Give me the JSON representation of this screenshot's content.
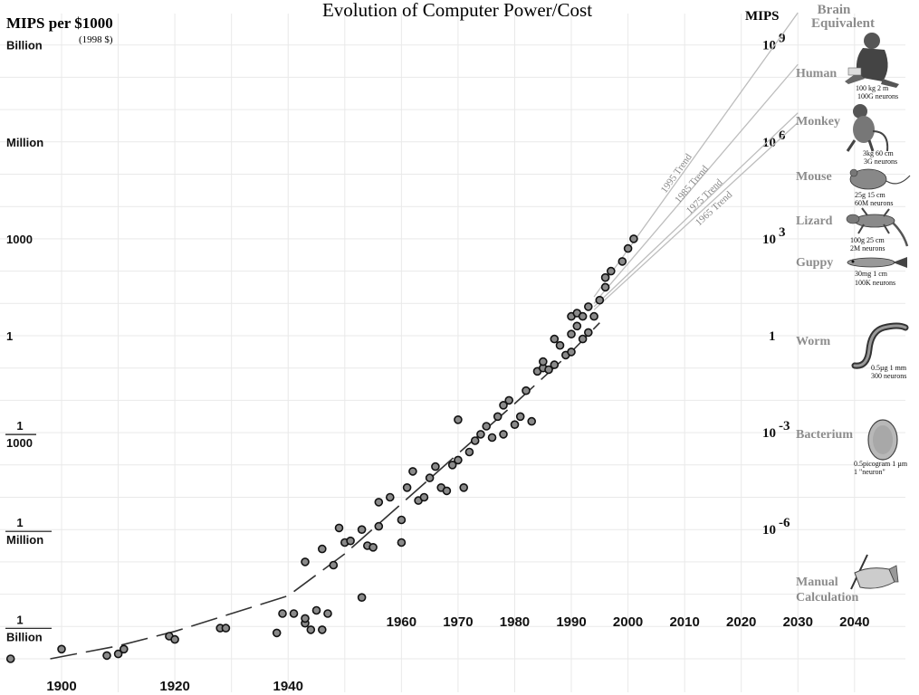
{
  "chart_data": {
    "type": "scatter",
    "title": "Evolution of Computer Power/Cost",
    "ylabel": "MIPS per $1000",
    "ylabel_note": "(1998 $)",
    "right_axis_label": "MIPS",
    "right_axis_header": [
      "Brain",
      "Equivalent"
    ],
    "xlim": [
      1895,
      2050
    ],
    "ylim_log10": [
      -10.5,
      10.5
    ],
    "left_ticks": [
      {
        "log10": 9,
        "label": "Billion"
      },
      {
        "log10": 6,
        "label": "Million"
      },
      {
        "log10": 3,
        "label": "1000"
      },
      {
        "log10": 0,
        "label": "1"
      },
      {
        "log10": -3,
        "num": "1",
        "den": "1000"
      },
      {
        "log10": -6,
        "num": "1",
        "den": "Million"
      },
      {
        "log10": -9,
        "num": "1",
        "den": "Billion"
      }
    ],
    "right_ticks": [
      {
        "log10": 9,
        "base": "10",
        "exp": "9"
      },
      {
        "log10": 6,
        "base": "10",
        "exp": "6"
      },
      {
        "log10": 3,
        "base": "10",
        "exp": "3"
      },
      {
        "log10": 0,
        "base": "1",
        "exp": ""
      },
      {
        "log10": -3,
        "base": "10",
        "exp": "-3"
      },
      {
        "log10": -6,
        "base": "10",
        "exp": "-6"
      }
    ],
    "x_ticks_lower": [
      1900,
      1920,
      1940
    ],
    "x_ticks_upper": [
      1960,
      1970,
      1980,
      1990,
      2000,
      2010,
      2020,
      2030,
      2040
    ],
    "points": [
      [
        1891,
        -10.0
      ],
      [
        1900,
        -9.7
      ],
      [
        1908,
        -9.9
      ],
      [
        1910,
        -9.85
      ],
      [
        1911,
        -9.7
      ],
      [
        1919,
        -9.3
      ],
      [
        1920,
        -9.4
      ],
      [
        1928,
        -9.05
      ],
      [
        1929,
        -9.05
      ],
      [
        1938,
        -9.2
      ],
      [
        1939,
        -8.6
      ],
      [
        1941,
        -8.6
      ],
      [
        1943,
        -8.9
      ],
      [
        1943,
        -8.75
      ],
      [
        1944,
        -9.1
      ],
      [
        1945,
        -8.5
      ],
      [
        1946,
        -9.1
      ],
      [
        1947,
        -8.6
      ],
      [
        1943,
        -7.0
      ],
      [
        1946,
        -6.6
      ],
      [
        1948,
        -7.1
      ],
      [
        1949,
        -5.95
      ],
      [
        1950,
        -6.4
      ],
      [
        1951,
        -6.35
      ],
      [
        1953,
        -6.0
      ],
      [
        1953,
        -8.1
      ],
      [
        1954,
        -6.5
      ],
      [
        1955,
        -6.55
      ],
      [
        1956,
        -5.9
      ],
      [
        1956,
        -5.15
      ],
      [
        1958,
        -5.0
      ],
      [
        1960,
        -5.7
      ],
      [
        1960,
        -6.4
      ],
      [
        1961,
        -4.7
      ],
      [
        1962,
        -4.2
      ],
      [
        1963,
        -5.1
      ],
      [
        1964,
        -5.0
      ],
      [
        1965,
        -4.4
      ],
      [
        1966,
        -4.05
      ],
      [
        1967,
        -4.7
      ],
      [
        1968,
        -4.8
      ],
      [
        1969,
        -4.0
      ],
      [
        1970,
        -3.85
      ],
      [
        1970,
        -2.6
      ],
      [
        1971,
        -4.7
      ],
      [
        1972,
        -3.6
      ],
      [
        1973,
        -3.25
      ],
      [
        1974,
        -3.05
      ],
      [
        1975,
        -2.8
      ],
      [
        1976,
        -3.15
      ],
      [
        1977,
        -2.5
      ],
      [
        1978,
        -3.05
      ],
      [
        1978,
        -2.15
      ],
      [
        1979,
        -2.0
      ],
      [
        1980,
        -2.75
      ],
      [
        1981,
        -2.5
      ],
      [
        1982,
        -1.7
      ],
      [
        1983,
        -2.65
      ],
      [
        1984,
        -1.1
      ],
      [
        1985,
        -1.0
      ],
      [
        1985,
        -0.8
      ],
      [
        1986,
        -1.05
      ],
      [
        1987,
        -0.9
      ],
      [
        1987,
        -0.1
      ],
      [
        1988,
        -0.3
      ],
      [
        1989,
        -0.6
      ],
      [
        1990,
        -0.5
      ],
      [
        1990,
        0.05
      ],
      [
        1990,
        0.6
      ],
      [
        1991,
        0.7
      ],
      [
        1991,
        0.3
      ],
      [
        1992,
        -0.1
      ],
      [
        1992,
        0.6
      ],
      [
        1993,
        0.1
      ],
      [
        1993,
        0.9
      ],
      [
        1994,
        0.6
      ],
      [
        1995,
        1.1
      ],
      [
        1996,
        1.5
      ],
      [
        1996,
        1.8
      ],
      [
        1997,
        2.0
      ],
      [
        1999,
        2.3
      ],
      [
        2000,
        2.7
      ],
      [
        2001,
        3.0
      ]
    ],
    "fit_curve": [
      [
        1898,
        -10.0
      ],
      [
        1910,
        -9.6
      ],
      [
        1920,
        -9.15
      ],
      [
        1930,
        -8.6
      ],
      [
        1940,
        -8.05
      ],
      [
        1950,
        -6.75
      ],
      [
        1960,
        -5.2
      ],
      [
        1970,
        -3.65
      ],
      [
        1980,
        -2.1
      ],
      [
        1990,
        -0.5
      ],
      [
        1995,
        0.4
      ]
    ],
    "trend_lines": [
      {
        "name": "1995 Trend",
        "from": [
          1994,
          1.2
        ],
        "to": [
          2030,
          10.0
        ]
      },
      {
        "name": "1985 Trend",
        "from": [
          1994,
          1.0
        ],
        "to": [
          2030,
          8.4
        ]
      },
      {
        "name": "1975 Trend",
        "from": [
          1994,
          0.9
        ],
        "to": [
          2030,
          6.9
        ]
      },
      {
        "name": "1965 Trend",
        "from": [
          1994,
          0.8
        ],
        "to": [
          2030,
          6.6
        ]
      }
    ],
    "levels": [
      {
        "name": "Human",
        "note1": "100 kg     2 m",
        "note2": "100G neurons"
      },
      {
        "name": "Monkey",
        "note1": "3kg    60 cm",
        "note2": "3G neurons"
      },
      {
        "name": "Mouse",
        "note1": "25g     15 cm",
        "note2": "60M neurons"
      },
      {
        "name": "Lizard",
        "note1": "100g   25 cm",
        "note2": "2M neurons"
      },
      {
        "name": "Guppy",
        "note1": "30mg     1 cm",
        "note2": "100K neurons"
      },
      {
        "name": "Worm",
        "note1": "0.5µg  1 mm",
        "note2": "300 neurons"
      },
      {
        "name": "Bacterium",
        "note1": "0.5picogram 1 µm",
        "note2": "1 \"neuron\""
      },
      {
        "name": "Manual",
        "name2": "Calculation"
      }
    ]
  }
}
